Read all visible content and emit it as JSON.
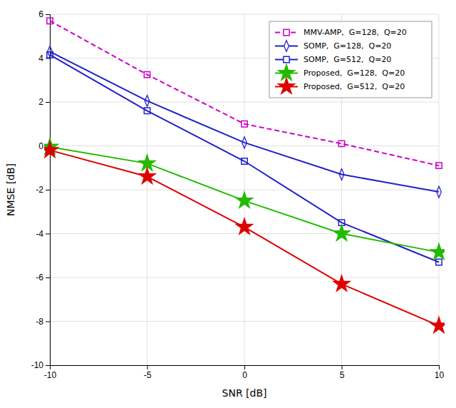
{
  "chart_data": {
    "type": "line",
    "x": [
      -10,
      -5,
      0,
      5,
      10
    ],
    "series": [
      {
        "name": "MMV-AMP,  G=128,  Q=20",
        "color": "#CC00CC",
        "line_style": "dashed",
        "marker": "square",
        "values": [
          5.7,
          3.25,
          1.0,
          0.1,
          -0.9
        ]
      },
      {
        "name": "SOMP,  G=128,  Q=20",
        "color": "#2020CC",
        "line_style": "solid",
        "marker": "diamond",
        "values": [
          4.3,
          2.05,
          0.15,
          -1.3,
          -2.1
        ]
      },
      {
        "name": "SOMP,  G=512,  Q=20",
        "color": "#2020CC",
        "line_style": "solid",
        "marker": "square",
        "values": [
          4.15,
          1.6,
          -0.7,
          -3.5,
          -5.3
        ]
      },
      {
        "name": "Proposed,  G=128,  Q=20",
        "color": "#22BB00",
        "line_style": "solid",
        "marker": "star",
        "values": [
          -0.05,
          -0.8,
          -2.5,
          -4.0,
          -4.85
        ]
      },
      {
        "name": "Proposed,  G=512,  Q=20",
        "color": "#DD0000",
        "line_style": "solid",
        "marker": "star",
        "values": [
          -0.2,
          -1.4,
          -3.7,
          -6.3,
          -8.2
        ]
      }
    ],
    "x_label": "SNR [dB]",
    "y_label": "NMSE [dB]",
    "xlim": [
      -10,
      10
    ],
    "ylim": [
      -10,
      6
    ],
    "xticks": [
      -10,
      -5,
      0,
      5,
      10
    ],
    "yticks": [
      -10,
      -8,
      -6,
      -4,
      -2,
      0,
      2,
      4,
      6
    ],
    "grid": true,
    "legend": "upper right"
  }
}
